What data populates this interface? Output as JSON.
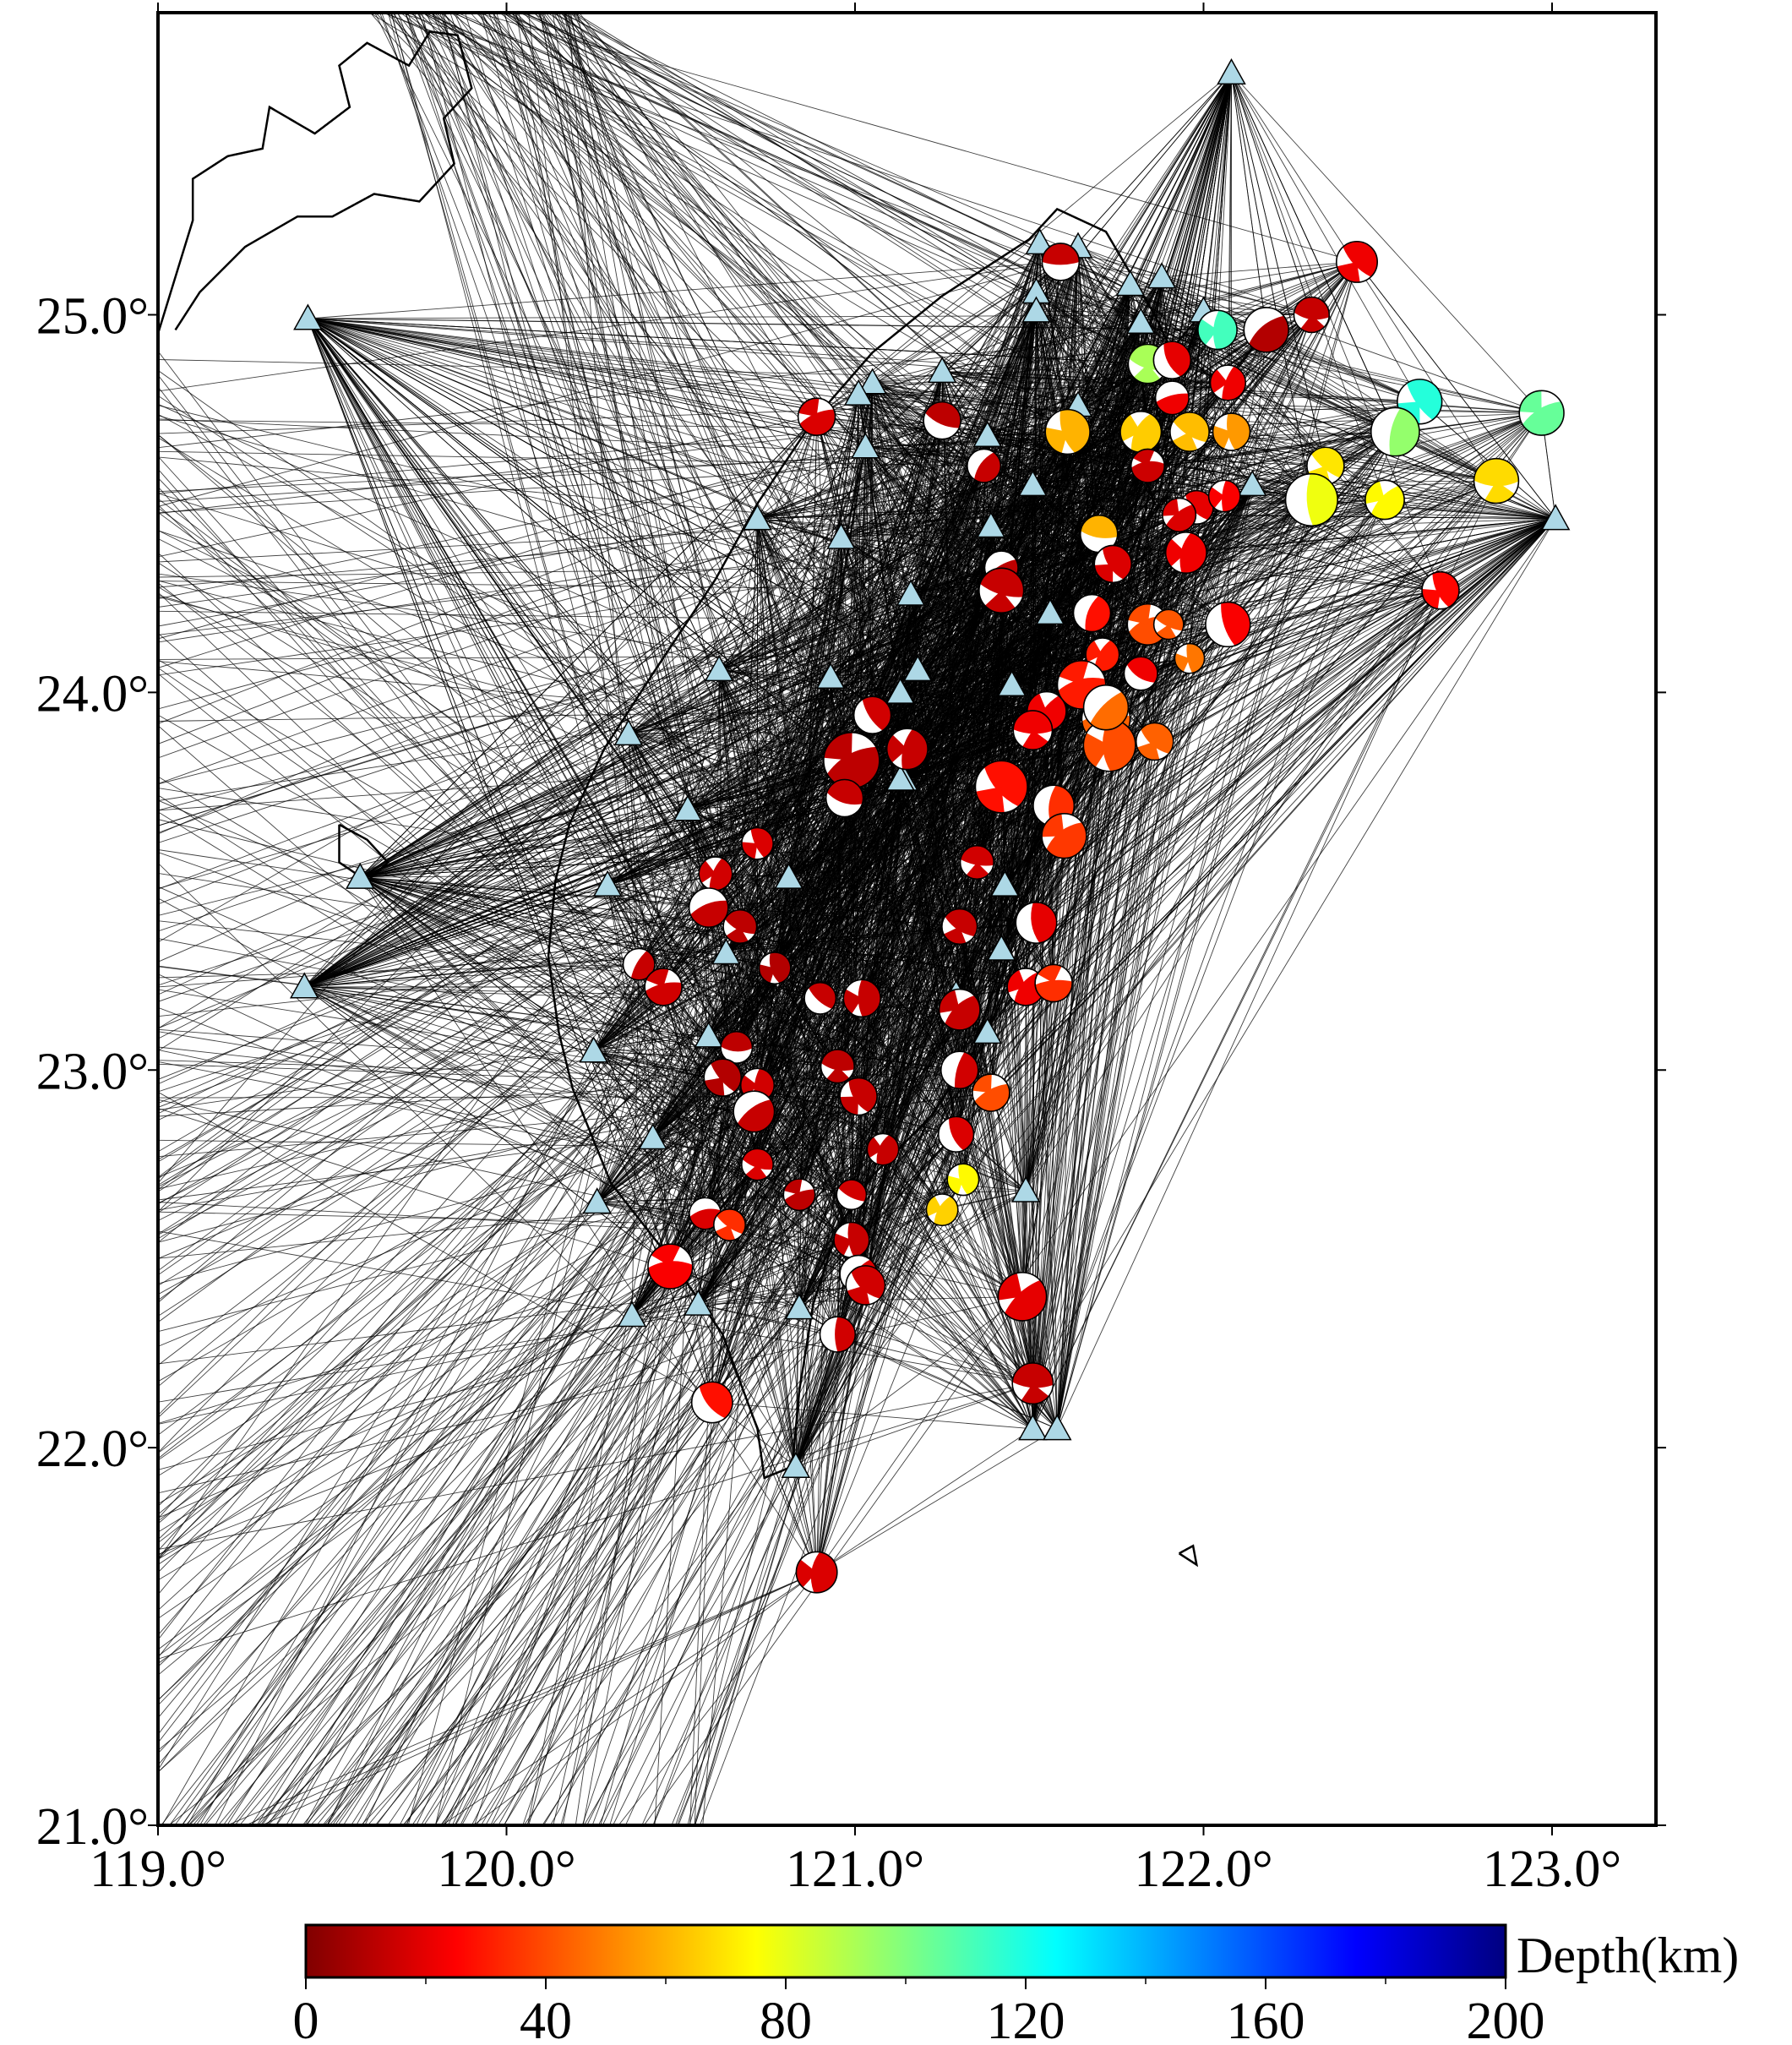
{
  "map": {
    "lon_range": [
      119.0,
      123.3
    ],
    "lat_range": [
      21.0,
      25.8
    ],
    "x_ticks": [
      {
        "value": 119.0,
        "label": "119.0°"
      },
      {
        "value": 120.0,
        "label": "120.0°"
      },
      {
        "value": 121.0,
        "label": "121.0°"
      },
      {
        "value": 122.0,
        "label": "122.0°"
      },
      {
        "value": 123.0,
        "label": "123.0°"
      }
    ],
    "y_ticks": [
      {
        "value": 21.0,
        "label": "21.0°"
      },
      {
        "value": 22.0,
        "label": "22.0°"
      },
      {
        "value": 23.0,
        "label": "23.0°"
      },
      {
        "value": 24.0,
        "label": "24.0°"
      },
      {
        "value": 25.0,
        "label": "25.0°"
      }
    ],
    "colors": {
      "station": "#add8e6",
      "coast": "#000000",
      "ray": "#000000"
    }
  },
  "colorbar": {
    "label": "Depth(km)",
    "min": 0,
    "max": 200,
    "tick_labels": [
      "0",
      "40",
      "80",
      "120",
      "160",
      "200"
    ],
    "tick_values": [
      0,
      40,
      80,
      120,
      160,
      200
    ],
    "stops": [
      "#800000",
      "#ff0000",
      "#ff8000",
      "#ffff00",
      "#80ff80",
      "#00ffff",
      "#0080ff",
      "#0000ff",
      "#000080"
    ]
  },
  "stations": [
    [
      119.43,
      24.99
    ],
    [
      119.58,
      23.51
    ],
    [
      119.42,
      23.22
    ],
    [
      120.35,
      23.89
    ],
    [
      120.29,
      23.49
    ],
    [
      120.72,
      24.46
    ],
    [
      120.61,
      24.06
    ],
    [
      120.52,
      23.69
    ],
    [
      120.25,
      23.05
    ],
    [
      120.42,
      22.82
    ],
    [
      120.26,
      22.65
    ],
    [
      120.36,
      22.35
    ],
    [
      120.55,
      22.38
    ],
    [
      120.58,
      23.09
    ],
    [
      120.63,
      23.31
    ],
    [
      120.81,
      23.51
    ],
    [
      120.96,
      24.41
    ],
    [
      120.93,
      24.04
    ],
    [
      121.05,
      24.82
    ],
    [
      121.03,
      24.65
    ],
    [
      121.01,
      24.79
    ],
    [
      121.25,
      24.85
    ],
    [
      121.16,
      24.26
    ],
    [
      121.18,
      24.06
    ],
    [
      121.13,
      24.0
    ],
    [
      121.14,
      23.77
    ],
    [
      120.99,
      23.79
    ],
    [
      121.38,
      24.68
    ],
    [
      121.39,
      24.44
    ],
    [
      121.51,
      24.55
    ],
    [
      121.53,
      25.19
    ],
    [
      121.64,
      25.18
    ],
    [
      121.52,
      25.06
    ],
    [
      121.52,
      25.01
    ],
    [
      121.79,
      25.08
    ],
    [
      121.88,
      25.1
    ],
    [
      121.82,
      24.98
    ],
    [
      122.0,
      25.01
    ],
    [
      121.64,
      24.76
    ],
    [
      122.08,
      25.64
    ],
    [
      122.14,
      24.55
    ],
    [
      123.01,
      24.46
    ],
    [
      121.43,
      23.49
    ],
    [
      121.38,
      23.1
    ],
    [
      121.29,
      23.2
    ],
    [
      121.49,
      22.68
    ],
    [
      121.51,
      22.05
    ],
    [
      121.58,
      22.05
    ],
    [
      120.83,
      21.95
    ],
    [
      120.84,
      22.37
    ],
    [
      121.45,
      24.02
    ],
    [
      121.56,
      24.21
    ],
    [
      121.13,
      23.77
    ],
    [
      121.42,
      23.32
    ]
  ],
  "events": [
    [
      121.59,
      25.14,
      14,
      1.0
    ],
    [
      122.44,
      25.14,
      22,
      1.1
    ],
    [
      122.04,
      24.96,
      112,
      1.05
    ],
    [
      122.18,
      24.96,
      10,
      1.2
    ],
    [
      122.31,
      25.0,
      14,
      0.95
    ],
    [
      122.62,
      24.77,
      118,
      1.2
    ],
    [
      122.55,
      24.69,
      96,
      1.3
    ],
    [
      122.97,
      24.74,
      105,
      1.2
    ],
    [
      121.84,
      24.87,
      92,
      1.05
    ],
    [
      121.91,
      24.88,
      20,
      1.0
    ],
    [
      122.07,
      24.82,
      22,
      0.95
    ],
    [
      120.89,
      24.73,
      18,
      1.0
    ],
    [
      121.25,
      24.72,
      12,
      1.0
    ],
    [
      121.61,
      24.69,
      60,
      1.2
    ],
    [
      121.82,
      24.69,
      65,
      1.1
    ],
    [
      121.91,
      24.78,
      22,
      0.9
    ],
    [
      121.96,
      24.69,
      62,
      1.05
    ],
    [
      122.08,
      24.69,
      55,
      1.0
    ],
    [
      121.37,
      24.6,
      14,
      0.9
    ],
    [
      121.84,
      24.6,
      15,
      0.9
    ],
    [
      122.35,
      24.6,
      70,
      1.0
    ],
    [
      122.31,
      24.51,
      78,
      1.4
    ],
    [
      122.52,
      24.51,
      74,
      1.05
    ],
    [
      122.84,
      24.56,
      68,
      1.2
    ],
    [
      121.98,
      24.49,
      20,
      0.9
    ],
    [
      122.06,
      24.52,
      24,
      0.85
    ],
    [
      121.93,
      24.47,
      18,
      0.9
    ],
    [
      121.7,
      24.42,
      60,
      1.0
    ],
    [
      121.74,
      24.34,
      18,
      1.0
    ],
    [
      121.95,
      24.37,
      22,
      1.1
    ],
    [
      121.42,
      24.33,
      12,
      0.9
    ],
    [
      121.42,
      24.27,
      14,
      1.2
    ],
    [
      122.68,
      24.27,
      26,
      1.0
    ],
    [
      121.68,
      24.21,
      28,
      1.0
    ],
    [
      121.84,
      24.18,
      40,
      1.1
    ],
    [
      121.9,
      24.18,
      42,
      0.8
    ],
    [
      122.07,
      24.18,
      24,
      1.2
    ],
    [
      121.71,
      24.1,
      30,
      0.9
    ],
    [
      121.65,
      24.02,
      30,
      1.3
    ],
    [
      121.82,
      24.05,
      22,
      0.9
    ],
    [
      121.96,
      24.09,
      48,
      0.8
    ],
    [
      121.55,
      23.95,
      22,
      1.05
    ],
    [
      121.72,
      23.93,
      44,
      1.3
    ],
    [
      121.86,
      23.87,
      44,
      1.0
    ],
    [
      121.73,
      23.86,
      40,
      1.4
    ],
    [
      121.72,
      23.96,
      46,
      1.2
    ],
    [
      121.51,
      23.9,
      22,
      1.05
    ],
    [
      121.42,
      23.75,
      28,
      1.4
    ],
    [
      121.57,
      23.7,
      34,
      1.1
    ],
    [
      121.6,
      23.62,
      36,
      1.2
    ],
    [
      121.35,
      23.55,
      16,
      0.9
    ],
    [
      121.05,
      23.94,
      16,
      1.0
    ],
    [
      121.15,
      23.85,
      14,
      1.1
    ],
    [
      120.99,
      23.82,
      12,
      1.5
    ],
    [
      120.97,
      23.72,
      14,
      1.0
    ],
    [
      120.72,
      23.6,
      18,
      0.85
    ],
    [
      120.6,
      23.52,
      16,
      0.9
    ],
    [
      120.58,
      23.43,
      14,
      1.05
    ],
    [
      120.67,
      23.38,
      12,
      0.9
    ],
    [
      120.77,
      23.27,
      10,
      0.85
    ],
    [
      120.38,
      23.28,
      14,
      0.85
    ],
    [
      120.45,
      23.22,
      16,
      1.0
    ],
    [
      121.3,
      23.38,
      14,
      0.95
    ],
    [
      121.52,
      23.39,
      20,
      1.1
    ],
    [
      121.49,
      23.22,
      22,
      1.0
    ],
    [
      121.57,
      23.23,
      34,
      1.0
    ],
    [
      120.9,
      23.19,
      14,
      0.85
    ],
    [
      121.02,
      23.19,
      14,
      1.0
    ],
    [
      121.3,
      23.16,
      14,
      1.1
    ],
    [
      120.66,
      23.06,
      12,
      0.85
    ],
    [
      120.62,
      22.98,
      10,
      1.0
    ],
    [
      120.72,
      22.96,
      16,
      0.9
    ],
    [
      120.71,
      22.89,
      14,
      1.1
    ],
    [
      120.95,
      23.01,
      12,
      0.9
    ],
    [
      121.01,
      22.93,
      14,
      1.0
    ],
    [
      121.3,
      23.0,
      16,
      1.0
    ],
    [
      121.39,
      22.94,
      40,
      1.0
    ],
    [
      120.72,
      22.75,
      18,
      0.85
    ],
    [
      121.29,
      22.83,
      18,
      0.95
    ],
    [
      121.08,
      22.79,
      14,
      0.85
    ],
    [
      120.84,
      22.67,
      12,
      0.85
    ],
    [
      120.99,
      22.67,
      16,
      0.8
    ],
    [
      121.31,
      22.71,
      74,
      0.85
    ],
    [
      121.25,
      22.63,
      66,
      0.85
    ],
    [
      120.57,
      22.62,
      18,
      0.85
    ],
    [
      120.64,
      22.59,
      34,
      0.85
    ],
    [
      120.99,
      22.55,
      14,
      0.95
    ],
    [
      121.01,
      22.46,
      18,
      1.0
    ],
    [
      120.47,
      22.48,
      24,
      1.2
    ],
    [
      121.03,
      22.43,
      16,
      1.05
    ],
    [
      120.95,
      22.3,
      16,
      0.95
    ],
    [
      121.48,
      22.4,
      20,
      1.3
    ],
    [
      121.51,
      22.17,
      14,
      1.1
    ],
    [
      120.59,
      22.12,
      28,
      1.1
    ],
    [
      120.89,
      21.67,
      18,
      1.1
    ]
  ],
  "coast_paths": [
    [
      [
        121.5,
        25.2
      ],
      [
        121.58,
        25.28
      ],
      [
        121.72,
        25.22
      ],
      [
        121.86,
        25.0
      ],
      [
        121.9,
        24.92
      ],
      [
        121.82,
        24.84
      ],
      [
        121.84,
        24.72
      ],
      [
        121.82,
        24.6
      ],
      [
        121.86,
        24.5
      ],
      [
        121.75,
        24.3
      ],
      [
        121.67,
        24.15
      ],
      [
        121.6,
        23.95
      ],
      [
        121.58,
        23.78
      ],
      [
        121.52,
        23.6
      ],
      [
        121.46,
        23.45
      ],
      [
        121.41,
        23.25
      ],
      [
        121.34,
        23.05
      ],
      [
        121.22,
        22.88
      ],
      [
        121.05,
        22.72
      ],
      [
        120.95,
        22.58
      ],
      [
        120.88,
        22.38
      ],
      [
        120.84,
        22.15
      ],
      [
        120.82,
        21.95
      ],
      [
        120.74,
        21.92
      ],
      [
        120.72,
        22.05
      ],
      [
        120.62,
        22.3
      ],
      [
        120.47,
        22.5
      ],
      [
        120.3,
        22.7
      ],
      [
        120.19,
        22.95
      ],
      [
        120.15,
        23.1
      ],
      [
        120.12,
        23.3
      ],
      [
        120.14,
        23.5
      ],
      [
        120.18,
        23.65
      ],
      [
        120.28,
        23.85
      ],
      [
        120.42,
        24.05
      ],
      [
        120.6,
        24.3
      ],
      [
        120.72,
        24.5
      ],
      [
        120.88,
        24.72
      ],
      [
        121.05,
        24.9
      ],
      [
        121.25,
        25.05
      ],
      [
        121.4,
        25.14
      ],
      [
        121.5,
        25.2
      ]
    ],
    [
      [
        119.0,
        24.95
      ],
      [
        119.05,
        25.1
      ],
      [
        119.1,
        25.25
      ],
      [
        119.1,
        25.36
      ],
      [
        119.2,
        25.42
      ],
      [
        119.3,
        25.44
      ],
      [
        119.32,
        25.55
      ],
      [
        119.45,
        25.48
      ],
      [
        119.55,
        25.55
      ],
      [
        119.52,
        25.66
      ],
      [
        119.6,
        25.72
      ],
      [
        119.72,
        25.66
      ],
      [
        119.78,
        25.75
      ],
      [
        119.86,
        25.74
      ],
      [
        119.9,
        25.6
      ],
      [
        119.82,
        25.52
      ],
      [
        119.85,
        25.4
      ],
      [
        119.75,
        25.3
      ],
      [
        119.62,
        25.32
      ],
      [
        119.5,
        25.26
      ],
      [
        119.4,
        25.26
      ],
      [
        119.25,
        25.18
      ],
      [
        119.12,
        25.06
      ],
      [
        119.05,
        24.96
      ]
    ],
    [
      [
        119.52,
        23.65
      ],
      [
        119.6,
        23.61
      ],
      [
        119.66,
        23.55
      ],
      [
        119.6,
        23.5
      ],
      [
        119.52,
        23.55
      ],
      [
        119.52,
        23.65
      ]
    ],
    [
      [
        121.93,
        21.72
      ],
      [
        121.97,
        21.74
      ],
      [
        121.98,
        21.69
      ],
      [
        121.93,
        21.72
      ]
    ]
  ],
  "ray_seed": 20240611
}
